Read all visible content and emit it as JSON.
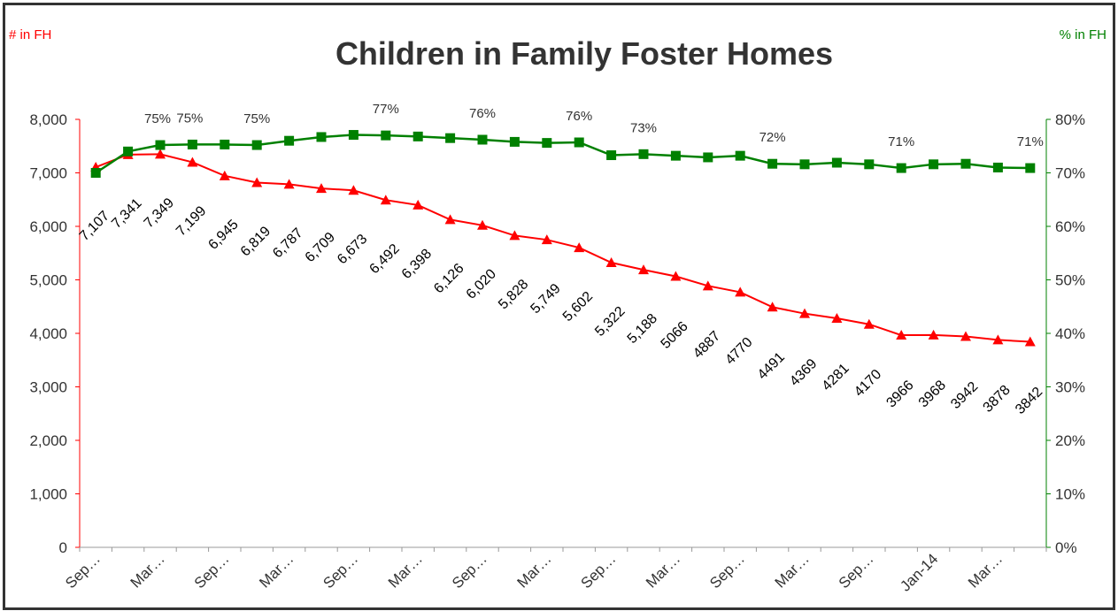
{
  "chart_data": {
    "type": "line",
    "title": "Children in Family Foster Homes",
    "y_left_label": "# in FH",
    "y_right_label": "% in FH",
    "y_left_ticks": [
      "0",
      "1,000",
      "2,000",
      "3,000",
      "4,000",
      "5,000",
      "6,000",
      "7,000",
      "8,000"
    ],
    "y_right_ticks": [
      "0%",
      "10%",
      "20%",
      "30%",
      "40%",
      "50%",
      "60%",
      "70%",
      "80%"
    ],
    "ylim_left": [
      0,
      8000
    ],
    "ylim_right": [
      0,
      80
    ],
    "x_tick_labels": [
      "Sep…",
      "Mar…",
      "Sep…",
      "Mar…",
      "Sep…",
      "Mar…",
      "Sep…",
      "Mar…",
      "Sep…",
      "Mar…",
      "Sep…",
      "Mar…",
      "Sep…",
      "Jan-14",
      "Mar…"
    ],
    "count_series": {
      "values": [
        7107,
        7341,
        7349,
        7199,
        6945,
        6819,
        6787,
        6709,
        6673,
        6492,
        6398,
        6126,
        6020,
        5828,
        5749,
        5602,
        5322,
        5188,
        5066,
        4887,
        4770,
        4491,
        4369,
        4281,
        4170,
        3966,
        3968,
        3942,
        3878,
        3842
      ],
      "labels": [
        "7,107",
        "7,341",
        "7,349",
        "7,199",
        "6,945",
        "6,819",
        "6,787",
        "6,709",
        "6,673",
        "6,492",
        "6,398",
        "6,126",
        "6,020",
        "5,828",
        "5,749",
        "5,602",
        "5,322",
        "5,188",
        "5066",
        "4887",
        "4770",
        "4491",
        "4369",
        "4281",
        "4170",
        "3966",
        "3968",
        "3942",
        "3878",
        "3842"
      ],
      "color": "#ff0000",
      "marker": "triangle"
    },
    "percent_series": {
      "values": [
        70,
        74,
        75.2,
        75.3,
        75.3,
        75.2,
        76,
        76.7,
        77.1,
        77,
        76.8,
        76.5,
        76.2,
        75.8,
        75.6,
        75.7,
        73.3,
        73.5,
        73.2,
        72.9,
        73.2,
        71.7,
        71.6,
        71.9,
        71.6,
        70.9,
        71.6,
        71.7,
        71,
        70.9
      ],
      "labels": [
        {
          "index": 2,
          "text": "75%"
        },
        {
          "index": 3,
          "text": "75%"
        },
        {
          "index": 5,
          "text": "75%"
        },
        {
          "index": 9,
          "text": "77%"
        },
        {
          "index": 12,
          "text": "76%"
        },
        {
          "index": 15,
          "text": "76%"
        },
        {
          "index": 17,
          "text": "73%"
        },
        {
          "index": 21,
          "text": "72%"
        },
        {
          "index": 25,
          "text": "71%"
        },
        {
          "index": 29,
          "text": "71%"
        }
      ],
      "color": "#008000",
      "marker": "square"
    },
    "left_axis_color": "#ff0000",
    "right_axis_color": "#008000",
    "text_color": "#333333",
    "grid": false
  }
}
